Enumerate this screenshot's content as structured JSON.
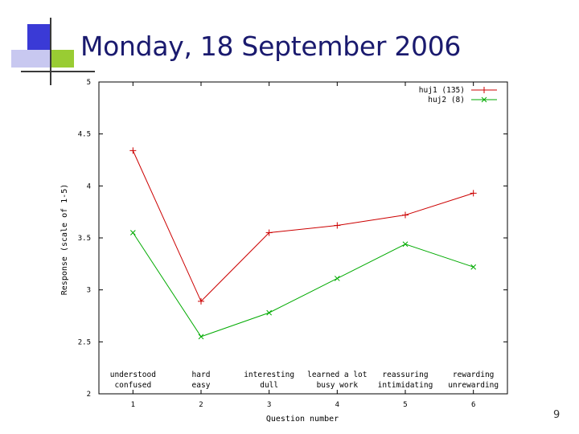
{
  "slide": {
    "title": "Monday, 18 September 2006",
    "page_number": "9"
  },
  "colors": {
    "title": "#1a1a6e",
    "decor_blue": "#3a3ad6",
    "decor_lavender": "#c8c8f0",
    "decor_green": "#99cc33"
  },
  "chart_data": {
    "type": "line",
    "title": "",
    "xlabel": "Question number",
    "ylabel": "Response (scale of 1-5)",
    "x": [
      1,
      2,
      3,
      4,
      5,
      6
    ],
    "xlim": [
      0.5,
      6.5
    ],
    "ylim": [
      2,
      5
    ],
    "y_ticks": [
      2,
      2.5,
      3,
      3.5,
      4,
      4.5,
      5
    ],
    "y_tick_labels": [
      "2",
      "2.5",
      "3",
      "3.5",
      "4",
      "4.5",
      "5"
    ],
    "x_tick_labels": [
      "1",
      "2",
      "3",
      "4",
      "5",
      "6"
    ],
    "question_labels": [
      {
        "x": 1,
        "line1": "understood",
        "line2": "confused"
      },
      {
        "x": 2,
        "line1": "hard",
        "line2": "easy"
      },
      {
        "x": 3,
        "line1": "interesting",
        "line2": "dull"
      },
      {
        "x": 4,
        "line1": "learned a lot",
        "line2": "busy work"
      },
      {
        "x": 5,
        "line1": "reassuring",
        "line2": "intimidating"
      },
      {
        "x": 6,
        "line1": "rewarding",
        "line2": "unrewarding"
      }
    ],
    "grid": false,
    "legend_position": "top-right",
    "series": [
      {
        "name": "huj1 (135)",
        "marker": "+",
        "color": "#cc0000",
        "values": [
          4.34,
          2.89,
          3.55,
          3.62,
          3.72,
          3.93
        ]
      },
      {
        "name": "huj2 (8)",
        "marker": "x",
        "color": "#00aa00",
        "values": [
          3.55,
          2.55,
          2.78,
          3.11,
          3.44,
          3.22
        ]
      }
    ]
  }
}
